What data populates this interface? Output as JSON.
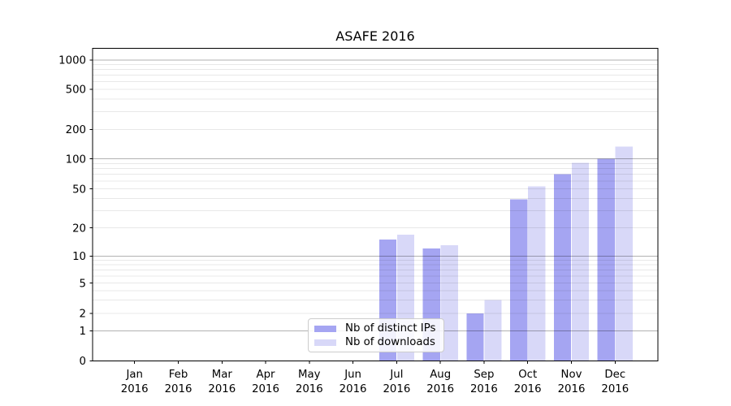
{
  "chart_data": {
    "type": "bar",
    "title": "ASAFE 2016",
    "x_ticks": [
      {
        "month": "Jan",
        "year": "2016"
      },
      {
        "month": "Feb",
        "year": "2016"
      },
      {
        "month": "Mar",
        "year": "2016"
      },
      {
        "month": "Apr",
        "year": "2016"
      },
      {
        "month": "May",
        "year": "2016"
      },
      {
        "month": "Jun",
        "year": "2016"
      },
      {
        "month": "Jul",
        "year": "2016"
      },
      {
        "month": "Aug",
        "year": "2016"
      },
      {
        "month": "Sep",
        "year": "2016"
      },
      {
        "month": "Oct",
        "year": "2016"
      },
      {
        "month": "Nov",
        "year": "2016"
      },
      {
        "month": "Dec",
        "year": "2016"
      }
    ],
    "y_ticks": [
      0,
      1,
      2,
      5,
      10,
      20,
      50,
      100,
      200,
      500,
      1000
    ],
    "y_scale": "symlog",
    "ylim": [
      0,
      1300
    ],
    "grid": true,
    "legend_position": "lower center",
    "series": [
      {
        "name": "Nb of distinct IPs",
        "color": "#a5a5f2",
        "values": [
          0,
          0,
          0,
          0,
          0,
          0,
          15,
          12,
          2,
          39,
          70,
          100
        ]
      },
      {
        "name": "Nb of downloads",
        "color": "#d8d8f8",
        "values": [
          0,
          0,
          0,
          0,
          0,
          0,
          17,
          13,
          3,
          53,
          91,
          134
        ]
      }
    ]
  },
  "colors": {
    "background": "#ffffff",
    "axis": "#000000",
    "grid_major": "rgba(0,0,0,0.30)",
    "grid_minor": "rgba(0,0,0,0.09)",
    "legend_border": "#cccccc"
  }
}
